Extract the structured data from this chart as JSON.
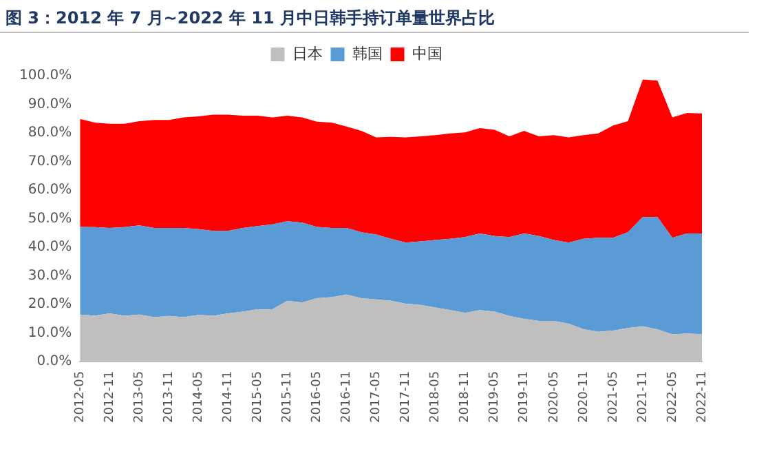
{
  "chart_data": {
    "type": "area",
    "title": "图 3：2012 年 7 月~2022 年 11 月中日韩手持订单量世界占比",
    "categories": [
      "2012-05",
      null,
      "2012-11",
      null,
      "2013-05",
      null,
      "2013-11",
      null,
      "2014-05",
      null,
      "2014-11",
      null,
      "2015-05",
      null,
      "2015-11",
      null,
      "2016-05",
      null,
      "2016-11",
      null,
      "2017-05",
      null,
      "2017-11",
      null,
      "2018-05",
      null,
      "2018-11",
      null,
      "2019-05",
      null,
      "2019-11",
      null,
      "2020-05",
      null,
      "2020-11",
      null,
      "2021-05",
      null,
      "2021-11",
      null,
      "2022-05",
      null,
      "2022-11"
    ],
    "series": [
      {
        "name": "日本",
        "color": "#bfbfbf",
        "values": [
          16.4,
          16.0,
          16.8,
          16.0,
          16.4,
          15.5,
          15.9,
          15.5,
          16.3,
          16.0,
          16.8,
          17.4,
          18.3,
          18.3,
          21.2,
          20.6,
          22.1,
          22.5,
          23.4,
          22.1,
          21.7,
          21.2,
          20.2,
          19.8,
          18.9,
          18.0,
          17.0,
          18.0,
          17.4,
          15.9,
          14.9,
          14.2,
          14.2,
          13.2,
          11.3,
          10.4,
          10.8,
          11.7,
          12.3,
          11.2,
          9.5,
          9.8,
          9.5
        ]
      },
      {
        "name": "韩国",
        "color": "#5b9bd5",
        "values": [
          30.7,
          31.0,
          29.9,
          31.0,
          31.2,
          31.2,
          30.8,
          31.2,
          30.0,
          29.7,
          28.9,
          29.3,
          29.1,
          29.7,
          27.9,
          28.0,
          25.0,
          24.2,
          23.3,
          23.1,
          22.7,
          21.7,
          21.4,
          22.2,
          23.6,
          24.9,
          26.5,
          26.8,
          26.5,
          27.6,
          29.9,
          29.7,
          28.3,
          28.4,
          31.6,
          32.9,
          32.5,
          33.5,
          38.2,
          39.3,
          33.8,
          35.0,
          35.3
        ]
      },
      {
        "name": "中国",
        "color": "#ff0000",
        "values": [
          37.8,
          36.6,
          36.5,
          36.2,
          36.5,
          37.8,
          37.8,
          38.7,
          39.5,
          40.7,
          40.7,
          39.3,
          38.6,
          37.4,
          36.9,
          36.8,
          36.8,
          36.9,
          35.5,
          35.5,
          34.0,
          35.7,
          36.8,
          36.8,
          36.7,
          36.9,
          36.7,
          36.9,
          37.2,
          35.3,
          35.9,
          34.9,
          36.7,
          36.8,
          36.3,
          36.5,
          39.3,
          38.9,
          48.2,
          47.8,
          42.1,
          42.2,
          42.0
        ]
      }
    ],
    "stacked": true,
    "ylim": [
      0,
      100
    ],
    "yticks": [
      {
        "value": 0,
        "label": "0.0%"
      },
      {
        "value": 10,
        "label": "10.0%"
      },
      {
        "value": 20,
        "label": "20.0%"
      },
      {
        "value": 30,
        "label": "30.0%"
      },
      {
        "value": 40,
        "label": "40.0%"
      },
      {
        "value": 50,
        "label": "50.0%"
      },
      {
        "value": 60,
        "label": "60.0%"
      },
      {
        "value": 70,
        "label": "70.0%"
      },
      {
        "value": 80,
        "label": "80.0%"
      },
      {
        "value": 90,
        "label": "90.0%"
      },
      {
        "value": 100,
        "label": "100.0%"
      }
    ],
    "grid": false,
    "legend": "top"
  }
}
